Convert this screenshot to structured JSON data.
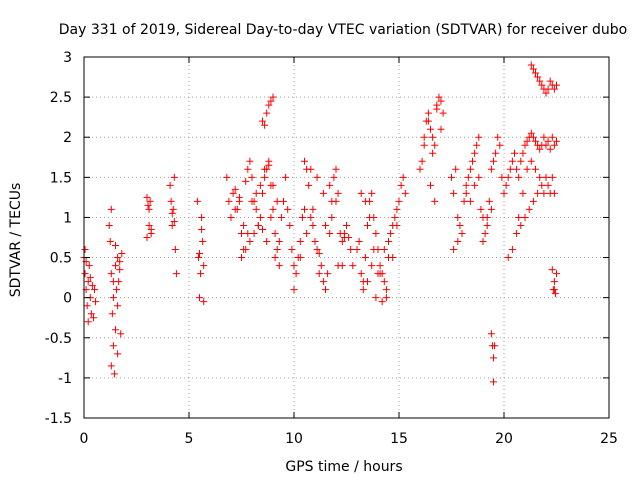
{
  "colors": {
    "marker": "#ff0000",
    "axis": "#000000",
    "grid": "#a0a0a0",
    "background": "#ffffff"
  },
  "chart_data": {
    "type": "scatter",
    "marker": "plus",
    "title": "Day 331 of 2019, Sidereal Day-to-day VTEC variation (SDTVAR) for receiver dubo",
    "xlabel": "GPS time / hours",
    "ylabel": "SDTVAR / TECUs",
    "xlim": [
      0,
      25
    ],
    "ylim": [
      -1.5,
      3
    ],
    "xticks": [
      0,
      5,
      10,
      15,
      20,
      25
    ],
    "xtick_labels": [
      "0",
      "5",
      "10",
      "15",
      "20",
      "25"
    ],
    "yticks": [
      -1.5,
      -1,
      -0.5,
      0,
      0.5,
      1,
      1.5,
      2,
      2.5,
      3
    ],
    "ytick_labels": [
      "-1.5",
      "-1",
      "-0.5",
      "0",
      "0.5",
      "1",
      "1.5",
      "2",
      "2.5",
      "3"
    ],
    "grid": true,
    "series": [
      {
        "name": "SDTVAR",
        "x": [
          0.0,
          0.05,
          0.1,
          0.15,
          0.2,
          0.25,
          0.3,
          0.35,
          0.4,
          0.45,
          0.5,
          0.55,
          0.05,
          0.1,
          0.2,
          0.3,
          1.2,
          1.25,
          1.3,
          1.35,
          1.4,
          1.45,
          1.5,
          1.55,
          1.6,
          1.65,
          1.7,
          1.75,
          1.8,
          1.3,
          1.4,
          1.5,
          1.6,
          1.7,
          1.3,
          1.4,
          1.5,
          1.6,
          3.0,
          3.05,
          3.1,
          3.15,
          3.2,
          3.0,
          3.1,
          3.2,
          4.1,
          4.15,
          4.2,
          4.25,
          4.3,
          4.35,
          4.4,
          4.3,
          4.2,
          5.4,
          5.45,
          5.5,
          5.55,
          5.6,
          5.65,
          5.7,
          5.5,
          5.6,
          5.7,
          6.8,
          6.9,
          7.0,
          7.1,
          7.2,
          7.3,
          7.4,
          7.5,
          7.6,
          7.7,
          7.8,
          7.9,
          8.0,
          8.1,
          8.2,
          8.3,
          8.4,
          8.5,
          8.6,
          8.7,
          8.8,
          8.9,
          9.0,
          9.1,
          9.2,
          9.3,
          9.4,
          9.5,
          9.6,
          7.0,
          7.2,
          7.4,
          7.6,
          7.8,
          8.0,
          8.2,
          8.4,
          8.6,
          8.8,
          9.0,
          9.2,
          7.5,
          7.7,
          7.9,
          8.1,
          8.3,
          8.5,
          8.7,
          8.9,
          9.1,
          9.3,
          8.5,
          8.6,
          8.7,
          8.8,
          8.9,
          9.0,
          9.7,
          9.8,
          9.9,
          10.0,
          10.1,
          10.2,
          10.3,
          10.4,
          10.5,
          10.6,
          10.7,
          10.8,
          10.9,
          11.0,
          11.1,
          11.2,
          11.3,
          11.4,
          11.5,
          11.6,
          11.7,
          11.8,
          11.9,
          12.0,
          12.1,
          12.2,
          12.3,
          12.4,
          12.5,
          12.6,
          12.7,
          12.8,
          10.0,
          10.3,
          10.6,
          10.9,
          11.2,
          11.5,
          11.8,
          12.1,
          12.4,
          10.5,
          10.8,
          11.1,
          11.4,
          11.7,
          12.0,
          12.3,
          13.0,
          13.1,
          13.2,
          13.3,
          13.4,
          13.5,
          13.6,
          13.7,
          13.8,
          13.9,
          14.0,
          14.1,
          14.2,
          14.3,
          14.4,
          14.5,
          14.6,
          14.7,
          14.8,
          14.9,
          15.0,
          15.1,
          15.2,
          15.3,
          13.3,
          13.5,
          13.7,
          13.9,
          14.1,
          14.3,
          14.5,
          14.7,
          14.9,
          13.2,
          13.4,
          13.6,
          13.8,
          14.0,
          14.2,
          14.4,
          16.0,
          16.1,
          16.2,
          16.3,
          16.4,
          16.5,
          16.6,
          16.7,
          16.8,
          16.9,
          17.0,
          17.1,
          16.2,
          16.4,
          16.6,
          16.8,
          17.0,
          16.5,
          16.7,
          17.5,
          17.6,
          17.7,
          17.8,
          17.9,
          18.0,
          18.1,
          18.2,
          18.3,
          18.4,
          18.5,
          18.6,
          18.7,
          18.8,
          18.9,
          19.0,
          19.1,
          19.2,
          19.3,
          19.4,
          19.5,
          19.6,
          19.7,
          19.8,
          19.9,
          17.6,
          17.8,
          18.0,
          18.2,
          18.4,
          18.6,
          18.8,
          19.0,
          19.2,
          19.4,
          19.4,
          19.45,
          19.5,
          19.55,
          19.5,
          20.0,
          20.1,
          20.2,
          20.3,
          20.4,
          20.5,
          20.6,
          20.7,
          20.8,
          20.9,
          21.0,
          21.1,
          21.2,
          21.3,
          21.4,
          21.5,
          21.6,
          21.7,
          21.8,
          21.9,
          22.0,
          22.1,
          22.2,
          22.3,
          22.4,
          22.5,
          20.2,
          20.4,
          20.6,
          20.8,
          21.0,
          21.2,
          21.4,
          21.6,
          21.8,
          22.0,
          22.2,
          22.4,
          20.7,
          20.9,
          21.1,
          21.3,
          21.5,
          21.7,
          21.9,
          22.1,
          22.3,
          21.3,
          21.4,
          21.5,
          21.6,
          21.7,
          21.8,
          21.9,
          22.0,
          22.1,
          22.2,
          22.3,
          22.4,
          22.5,
          22.3,
          22.35,
          22.4,
          22.45,
          22.5,
          22.4
        ],
        "y": [
          0.5,
          0.3,
          0.1,
          -0.1,
          0.2,
          0.4,
          0.0,
          -0.2,
          0.15,
          -0.25,
          0.1,
          -0.05,
          0.6,
          0.45,
          -0.3,
          0.25,
          0.9,
          0.7,
          0.3,
          -0.2,
          -0.6,
          -0.95,
          -0.4,
          0.1,
          0.5,
          0.2,
          0.35,
          -0.45,
          0.55,
          1.1,
          0.0,
          0.65,
          -0.7,
          0.45,
          -0.85,
          0.2,
          0.4,
          -0.1,
          1.25,
          1.15,
          0.9,
          1.2,
          0.8,
          0.75,
          1.1,
          0.85,
          1.4,
          1.2,
          0.9,
          1.1,
          1.5,
          0.6,
          0.3,
          0.95,
          1.05,
          1.2,
          0.5,
          0.0,
          0.3,
          1.0,
          0.7,
          -0.05,
          0.55,
          0.85,
          0.4,
          1.5,
          1.2,
          1.0,
          1.3,
          1.35,
          1.1,
          1.25,
          0.8,
          0.6,
          1.45,
          1.6,
          1.7,
          1.5,
          1.2,
          1.1,
          0.9,
          1.0,
          1.3,
          1.5,
          1.6,
          1.7,
          1.4,
          1.1,
          0.8,
          0.6,
          0.7,
          1.0,
          1.2,
          1.5,
          1.0,
          1.1,
          1.2,
          0.9,
          0.8,
          1.2,
          1.3,
          1.4,
          1.6,
          1.65,
          1.4,
          1.2,
          0.5,
          0.6,
          0.7,
          0.8,
          0.9,
          0.85,
          0.7,
          1.0,
          0.5,
          0.4,
          2.2,
          2.15,
          2.3,
          2.4,
          2.45,
          2.5,
          1.1,
          0.9,
          0.6,
          0.4,
          0.3,
          0.5,
          0.7,
          1.0,
          1.1,
          1.6,
          1.4,
          1.0,
          0.9,
          0.7,
          0.6,
          0.55,
          0.4,
          0.2,
          0.1,
          0.3,
          0.8,
          1.0,
          1.5,
          1.6,
          1.3,
          0.8,
          0.7,
          0.75,
          0.9,
          0.75,
          0.6,
          0.4,
          0.1,
          0.5,
          0.8,
          1.1,
          0.3,
          0.9,
          1.2,
          0.4,
          0.8,
          1.7,
          1.6,
          1.5,
          1.3,
          1.4,
          1.2,
          0.4,
          0.6,
          0.7,
          0.3,
          0.2,
          0.5,
          0.9,
          1.2,
          1.3,
          1.0,
          0.8,
          0.6,
          0.4,
          0.3,
          0.2,
          0.1,
          0.5,
          0.8,
          0.9,
          1.0,
          1.1,
          1.2,
          1.4,
          1.5,
          1.3,
          0.1,
          0.2,
          0.4,
          0.0,
          0.3,
          0.6,
          0.7,
          0.5,
          0.9,
          1.3,
          1.2,
          1.0,
          0.6,
          0.3,
          -0.05,
          0.0,
          1.6,
          1.7,
          2.0,
          2.2,
          2.3,
          2.1,
          1.8,
          1.9,
          2.4,
          2.5,
          2.45,
          2.3,
          1.9,
          2.2,
          2.0,
          2.35,
          2.1,
          1.4,
          1.2,
          1.5,
          1.3,
          1.6,
          1.0,
          0.9,
          0.8,
          1.2,
          1.4,
          1.5,
          1.6,
          1.7,
          1.8,
          1.9,
          2.0,
          1.1,
          0.7,
          0.8,
          1.0,
          1.2,
          1.6,
          1.7,
          1.8,
          2.0,
          1.9,
          1.5,
          0.6,
          0.7,
          0.8,
          1.3,
          1.2,
          1.4,
          1.5,
          1.0,
          0.9,
          1.1,
          -0.45,
          -0.6,
          -0.75,
          -0.6,
          -1.05,
          1.3,
          1.4,
          1.5,
          1.6,
          1.7,
          1.8,
          1.6,
          1.5,
          1.7,
          1.8,
          1.9,
          1.95,
          2.0,
          2.05,
          2.0,
          1.95,
          1.9,
          1.85,
          1.9,
          2.0,
          1.9,
          1.95,
          1.85,
          2.0,
          1.9,
          1.95,
          0.5,
          0.6,
          0.8,
          0.9,
          1.0,
          1.1,
          1.2,
          1.3,
          1.4,
          1.5,
          1.3,
          1.3,
          1.0,
          1.3,
          1.6,
          1.7,
          1.6,
          1.5,
          1.3,
          1.4,
          1.5,
          2.9,
          2.85,
          2.8,
          2.75,
          2.7,
          2.65,
          2.6,
          2.55,
          2.6,
          2.7,
          2.65,
          2.6,
          2.65,
          0.35,
          0.1,
          0.2,
          0.05,
          0.3,
          0.1
        ]
      }
    ]
  }
}
